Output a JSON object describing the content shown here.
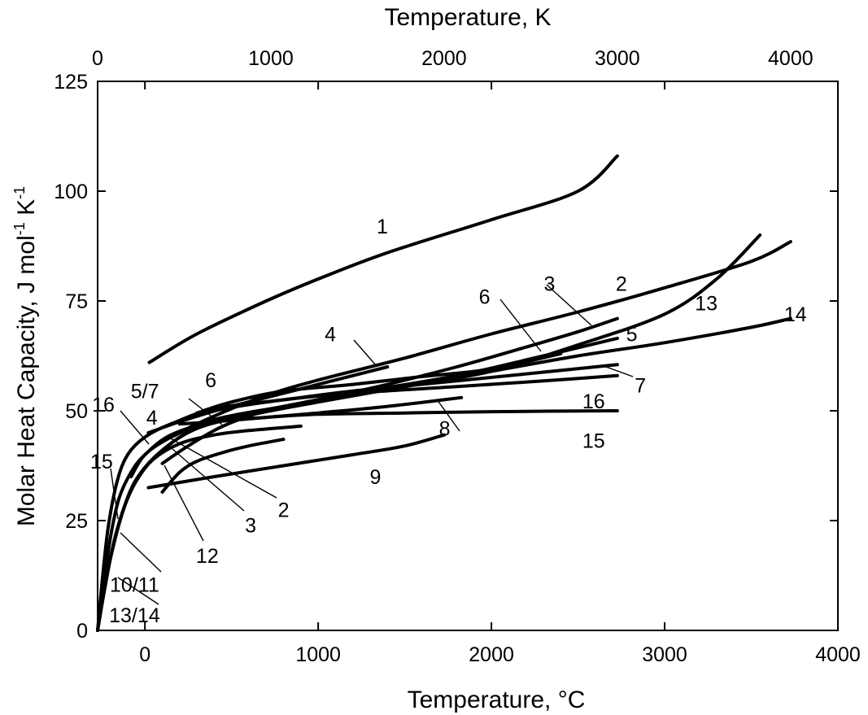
{
  "chart_data": {
    "type": "line",
    "title": "",
    "xlabel": "Temperature, °C",
    "x2label": "Temperature, K",
    "ylabel_main": "Molar Heat Capacity, J mol",
    "ylabel_sup1": "-1",
    "ylabel_mid": " K",
    "ylabel_sup2": "-1",
    "xlim": [
      -273.15,
      4000
    ],
    "ylim": [
      0,
      125
    ],
    "x2lim": [
      0,
      4273.15
    ],
    "xticks": [
      0,
      1000,
      2000,
      3000,
      4000
    ],
    "xtick_labels": [
      "0",
      "1000",
      "2000",
      "3000",
      "4000"
    ],
    "x2ticks": [
      0,
      1000,
      2000,
      3000,
      4000
    ],
    "x2tick_labels": [
      "0",
      "1000",
      "2000",
      "3000",
      "4000"
    ],
    "yticks": [
      0,
      25,
      50,
      75,
      100,
      125
    ],
    "ytick_labels": [
      "0",
      "25",
      "50",
      "75",
      "100",
      "125"
    ],
    "grid": false,
    "legend": "none",
    "series": [
      {
        "name": "1",
        "points": [
          [
            25,
            61
          ],
          [
            300,
            67.5
          ],
          [
            700,
            75
          ],
          [
            1000,
            80
          ],
          [
            1400,
            86
          ],
          [
            2000,
            93.5
          ],
          [
            2500,
            100
          ],
          [
            2727,
            108
          ]
        ]
      },
      {
        "name": "2",
        "points": [
          [
            -80,
            35
          ],
          [
            0,
            40
          ],
          [
            150,
            44
          ],
          [
            400,
            48.8
          ],
          [
            700,
            53.5
          ],
          [
            1000,
            57
          ],
          [
            1500,
            62
          ],
          [
            2000,
            67.5
          ],
          [
            2500,
            72.5
          ],
          [
            3000,
            78
          ],
          [
            3500,
            84
          ],
          [
            3727,
            88.5
          ]
        ]
      },
      {
        "name": "3",
        "points": [
          [
            100,
            38
          ],
          [
            250,
            42
          ],
          [
            450,
            46.5
          ],
          [
            700,
            50
          ],
          [
            1000,
            52.5
          ],
          [
            1400,
            56
          ],
          [
            1800,
            60
          ],
          [
            2200,
            64.5
          ],
          [
            2500,
            68
          ],
          [
            2727,
            71
          ]
        ]
      },
      {
        "name": "4",
        "points": [
          [
            20,
            45
          ],
          [
            200,
            47.5
          ],
          [
            450,
            50.5
          ],
          [
            700,
            53
          ],
          [
            1000,
            56
          ],
          [
            1200,
            58
          ],
          [
            1400,
            60
          ]
        ]
      },
      {
        "name": "5",
        "points": [
          [
            150,
            44
          ],
          [
            400,
            48
          ],
          [
            800,
            51
          ],
          [
            1200,
            54
          ],
          [
            1800,
            58
          ],
          [
            2300,
            62.5
          ],
          [
            2727,
            66.5
          ]
        ]
      },
      {
        "name": "6",
        "points": [
          [
            300,
            49.5
          ],
          [
            500,
            52
          ],
          [
            800,
            54.5
          ],
          [
            1200,
            56
          ],
          [
            1600,
            57.8
          ],
          [
            2000,
            59.5
          ],
          [
            2400,
            63
          ]
        ]
      },
      {
        "name": "7",
        "points": [
          [
            150,
            47
          ],
          [
            400,
            50.5
          ],
          [
            800,
            52.5
          ],
          [
            1200,
            54.5
          ],
          [
            1800,
            56.8
          ],
          [
            2300,
            58.8
          ],
          [
            2727,
            60.5
          ]
        ]
      },
      {
        "name": "8",
        "points": [
          [
            200,
            47
          ],
          [
            400,
            47.5
          ],
          [
            700,
            48.5
          ],
          [
            1000,
            49.5
          ],
          [
            1400,
            51
          ],
          [
            1827,
            53
          ]
        ]
      },
      {
        "name": "9",
        "points": [
          [
            20,
            32.5
          ],
          [
            400,
            35
          ],
          [
            800,
            37.5
          ],
          [
            1200,
            40
          ],
          [
            1500,
            42
          ],
          [
            1727,
            44.5
          ]
        ]
      },
      {
        "name": "10/11",
        "points": [
          [
            -273.15,
            0
          ],
          [
            -230,
            10
          ],
          [
            -180,
            20
          ],
          [
            -120,
            28
          ],
          [
            -50,
            34
          ],
          [
            50,
            39
          ],
          [
            200,
            42.5
          ],
          [
            400,
            44.5
          ],
          [
            600,
            45.5
          ],
          [
            900,
            46.5
          ]
        ]
      },
      {
        "name": "12",
        "points": [
          [
            100,
            31.5
          ],
          [
            200,
            36
          ],
          [
            300,
            38.5
          ],
          [
            450,
            40.5
          ],
          [
            600,
            42
          ],
          [
            800,
            43.5
          ]
        ]
      },
      {
        "name": "13",
        "points": [
          [
            -273.15,
            0
          ],
          [
            -240,
            8
          ],
          [
            -190,
            18
          ],
          [
            -120,
            28
          ],
          [
            -40,
            35
          ],
          [
            100,
            41
          ],
          [
            300,
            46
          ],
          [
            600,
            49
          ],
          [
            1000,
            52
          ],
          [
            1500,
            55.5
          ],
          [
            2000,
            59
          ],
          [
            2500,
            65
          ],
          [
            3000,
            72
          ],
          [
            3300,
            80
          ],
          [
            3550,
            90
          ]
        ]
      },
      {
        "name": "14",
        "points": [
          [
            -273.15,
            0
          ],
          [
            -240,
            8
          ],
          [
            -190,
            18
          ],
          [
            -120,
            28
          ],
          [
            -40,
            35
          ],
          [
            100,
            41
          ],
          [
            300,
            46
          ],
          [
            600,
            49
          ],
          [
            1000,
            52
          ],
          [
            1500,
            55.5
          ],
          [
            2000,
            59
          ],
          [
            2500,
            62.5
          ],
          [
            3000,
            65.5
          ],
          [
            3500,
            69
          ],
          [
            3727,
            71
          ]
        ]
      },
      {
        "name": "15",
        "points": [
          [
            -273.15,
            0
          ],
          [
            -240,
            10
          ],
          [
            -200,
            21
          ],
          [
            -150,
            30
          ],
          [
            -80,
            36
          ],
          [
            0,
            40
          ],
          [
            150,
            44.5
          ],
          [
            400,
            47.5
          ],
          [
            700,
            48.5
          ],
          [
            1000,
            49.2
          ],
          [
            1500,
            49.5
          ],
          [
            2000,
            49.8
          ],
          [
            2727,
            50
          ]
        ]
      },
      {
        "name": "16",
        "points": [
          [
            -273.15,
            0
          ],
          [
            -245,
            12
          ],
          [
            -210,
            24
          ],
          [
            -160,
            34
          ],
          [
            -100,
            40
          ],
          [
            0,
            44
          ],
          [
            150,
            47
          ],
          [
            400,
            50
          ],
          [
            800,
            52.5
          ],
          [
            1200,
            54
          ],
          [
            1800,
            55.5
          ],
          [
            2300,
            56.8
          ],
          [
            2727,
            58
          ]
        ]
      }
    ],
    "annotations": [
      {
        "text": "1",
        "at": [
          1370,
          92
        ]
      },
      {
        "text": "2",
        "at": [
          2750,
          79
        ]
      },
      {
        "text": "3",
        "at": [
          2335,
          79
        ]
      },
      {
        "text": "6",
        "at": [
          1960,
          76
        ]
      },
      {
        "text": "13",
        "at": [
          3240,
          74.5
        ]
      },
      {
        "text": "14",
        "at": [
          3755,
          72
        ]
      },
      {
        "text": "4",
        "at": [
          1070,
          67.5
        ]
      },
      {
        "text": "5",
        "at": [
          2810,
          67.5
        ]
      },
      {
        "text": "6",
        "at": [
          380,
          57
        ]
      },
      {
        "text": "7",
        "at": [
          2860,
          55.8
        ]
      },
      {
        "text": "5/7",
        "at": [
          0,
          54.5
        ]
      },
      {
        "text": "16",
        "at": [
          -240,
          51.5
        ]
      },
      {
        "text": "16",
        "at": [
          2590,
          52.2
        ]
      },
      {
        "text": "4",
        "at": [
          40,
          48.5
        ]
      },
      {
        "text": "8",
        "at": [
          1730,
          46
        ]
      },
      {
        "text": "15",
        "at": [
          2590,
          43.2
        ]
      },
      {
        "text": "15",
        "at": [
          -250,
          38.5
        ]
      },
      {
        "text": "9",
        "at": [
          1330,
          35
        ]
      },
      {
        "text": "2",
        "at": [
          800,
          27.5
        ]
      },
      {
        "text": "3",
        "at": [
          610,
          24
        ]
      },
      {
        "text": "12",
        "at": [
          360,
          17
        ]
      },
      {
        "text": "10/11",
        "at": [
          -60,
          10.5
        ]
      },
      {
        "text": "13/14",
        "at": [
          -60,
          3.5
        ]
      }
    ]
  }
}
